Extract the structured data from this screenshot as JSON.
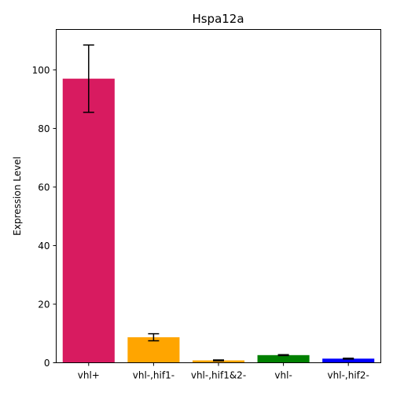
{
  "chart_data": {
    "type": "bar",
    "title": "Hspa12a",
    "xlabel": "",
    "ylabel": "Expression Level",
    "categories": [
      "vhl+",
      "vhl-,hif1-",
      "vhl-,hif1&2-",
      "vhl-",
      "vhl-,hif2-"
    ],
    "values": [
      97.0,
      8.7,
      0.8,
      2.6,
      1.4
    ],
    "errors": [
      11.5,
      1.2,
      0.15,
      0.15,
      0.15
    ],
    "colors": [
      "#d81b60",
      "#ffa500",
      "#ffa500",
      "#008000",
      "#0000ff"
    ],
    "ylim": [
      0,
      113.8
    ],
    "yticks": [
      0,
      20,
      40,
      60,
      80,
      100
    ],
    "grid": false,
    "legend": "none"
  }
}
